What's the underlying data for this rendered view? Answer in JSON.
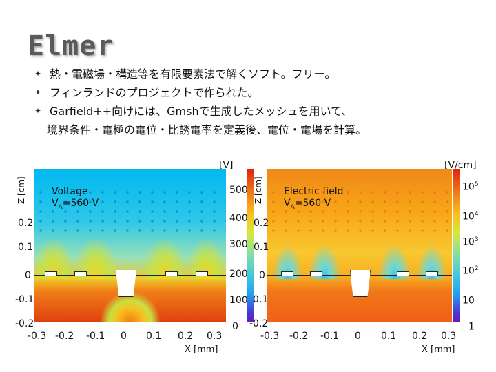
{
  "slide": {
    "title": "Elmer",
    "bullets": [
      "熱・電磁場・構造等を有限要素法で解くソフト。フリー。",
      "フィンランドのプロジェクトで作られた。",
      "Garfield++向けには、Gmshで生成したメッシュを用いて、"
    ],
    "continuation": "境界条件・電極の電位・比誘電率を定義後、電位・電場を計算。"
  },
  "colors": {
    "title": "#5a5a5a",
    "voltage_map": [
      "#00b8f0",
      "#98e0b8",
      "#f0c828",
      "#e04010"
    ],
    "efield_map": [
      "#30c0f0",
      "#f8c830",
      "#f06018"
    ]
  },
  "left_plot": {
    "label_line1": "Voltage",
    "label_line2_prefix": "V",
    "label_line2_sub": "A",
    "label_line2_suffix": "=560 V",
    "y_axis_title": "Z [cm]",
    "x_axis_title": "X [mm]",
    "y_ticks": [
      "0.2",
      "0.1",
      "0",
      "-0.1",
      "-0.2"
    ],
    "x_ticks": [
      "-0.3",
      "-0.2",
      "-0.1",
      "0",
      "0.1",
      "0.2",
      "0.3"
    ],
    "colorbar_unit": "[V]",
    "colorbar_ticks": [
      "500",
      "400",
      "300",
      "200",
      "100",
      "0"
    ]
  },
  "right_plot": {
    "label_line1": "Electric field",
    "label_line2_prefix": "V",
    "label_line2_sub": "A",
    "label_line2_suffix": "=560 V",
    "y_axis_title": "Z [cm]",
    "x_axis_title": "X [mm]",
    "y_ticks": [
      "0.2",
      "0.1",
      "0",
      "-0.1",
      "-0.2"
    ],
    "x_ticks": [
      "-0.3",
      "-0.2",
      "-0.1",
      "0",
      "0.1",
      "0.2",
      "0.3"
    ],
    "colorbar_unit": "[V/cm]",
    "colorbar_ticks": [
      {
        "base": "10",
        "exp": "5"
      },
      {
        "base": "10",
        "exp": "4"
      },
      {
        "base": "10",
        "exp": "3"
      },
      {
        "base": "10",
        "exp": "2"
      },
      {
        "base": "10",
        "exp": ""
      },
      {
        "base": "1",
        "exp": ""
      }
    ]
  }
}
